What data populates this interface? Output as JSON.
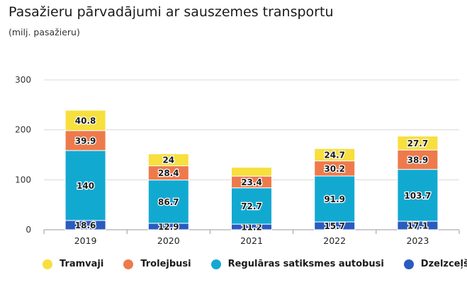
{
  "chart_data": {
    "type": "bar",
    "stacked": true,
    "title": "Pasažieru pārvadājumi ar sauszemes transportu",
    "subtitle": "(milj. pasažieru)",
    "xlabel": "",
    "ylabel": "",
    "ylim": [
      0,
      300
    ],
    "yticks": [
      "0",
      "100",
      "200",
      "300"
    ],
    "grid": true,
    "legend_position": "bottom",
    "categories": [
      "2019",
      "2020",
      "2021",
      "2022",
      "2023"
    ],
    "series": [
      {
        "name": "Dzelzceļš",
        "color": "#2a5bbf",
        "values": [
          18.6,
          12.9,
          11.2,
          15.7,
          17.1
        ],
        "labels": [
          "18.6",
          "12.9",
          "11.2",
          "15.7",
          "17.1"
        ]
      },
      {
        "name": "Regulāras satiksmes autobusi",
        "color": "#12a9d1",
        "values": [
          140,
          86.7,
          72.7,
          91.9,
          103.7
        ],
        "labels": [
          "140",
          "86.7",
          "72.7",
          "91.9",
          "103.7"
        ]
      },
      {
        "name": "Trolejbusi",
        "color": "#ee7a4c",
        "values": [
          39.9,
          28.4,
          23.4,
          30.2,
          38.9
        ],
        "labels": [
          "39.9",
          "28.4",
          "23.4",
          "30.2",
          "38.9"
        ]
      },
      {
        "name": "Tramvaji",
        "color": "#f7df3e",
        "values": [
          40.8,
          24,
          17.7,
          24.7,
          27.7
        ],
        "labels": [
          "40.8",
          "24",
          "",
          "24.7",
          "27.7"
        ]
      }
    ],
    "legend_order": [
      "Tramvaji",
      "Trolejbusi",
      "Regulāras satiksmes autobusi",
      "Dzelzceļš"
    ]
  }
}
